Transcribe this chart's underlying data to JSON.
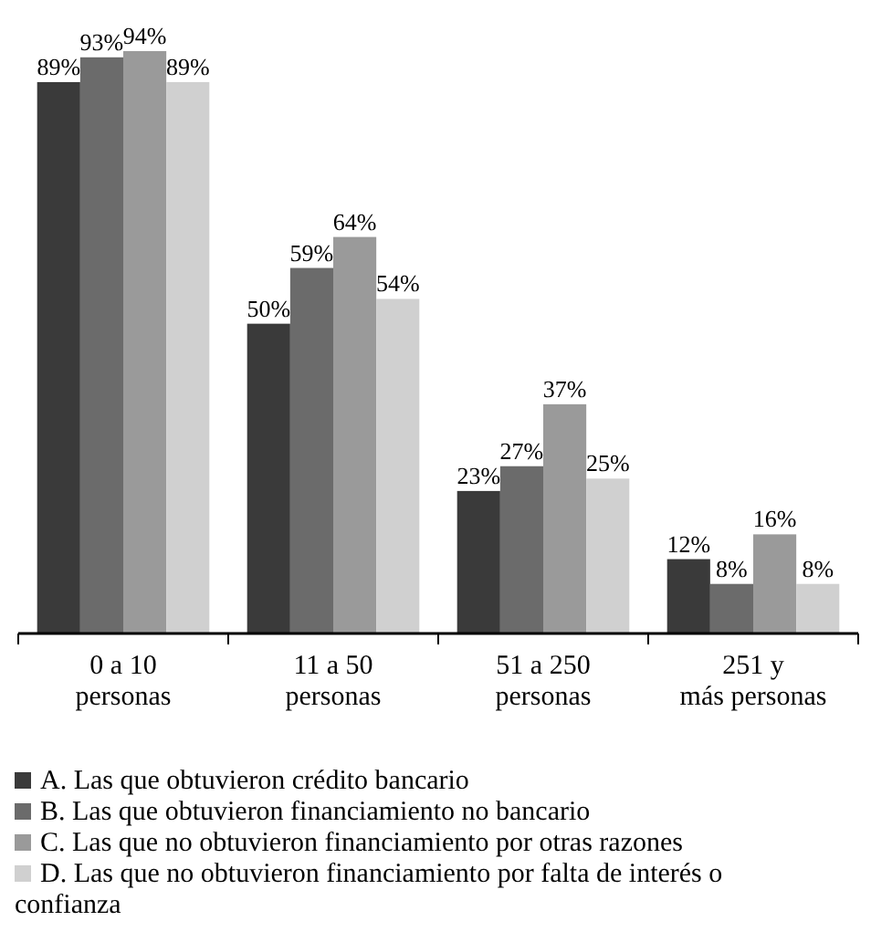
{
  "chart_data": {
    "type": "bar",
    "categories": [
      "0 a 10\npersonas",
      "11 a 50\npersonas",
      "51 a 250\npersonas",
      "251 y\nmás personas"
    ],
    "series": [
      {
        "name": "A. Las que obtuvieron crédito bancario",
        "color": "#3a3a3a",
        "values": [
          89,
          50,
          23,
          12
        ],
        "value_labels": [
          "89%",
          "50%",
          "23%",
          "12%"
        ]
      },
      {
        "name": "B. Las que obtuvieron financiamiento no bancario",
        "color": "#6b6b6b",
        "values": [
          93,
          59,
          27,
          8
        ],
        "value_labels": [
          "93%",
          "59%",
          "27%",
          "8%"
        ]
      },
      {
        "name": "C. Las que no obtuvieron financiamiento por otras razones",
        "color": "#9a9a9a",
        "values": [
          94,
          64,
          37,
          16
        ],
        "value_labels": [
          "94%",
          "64%",
          "37%",
          "16%"
        ]
      },
      {
        "name": "D. Las que no obtuvieron financiamiento por falta de interés o confianza",
        "color": "#d0d0d0",
        "values": [
          89,
          54,
          25,
          8
        ],
        "value_labels": [
          "89%",
          "54%",
          "25%",
          "8%"
        ]
      }
    ],
    "legend": "bottom"
  }
}
